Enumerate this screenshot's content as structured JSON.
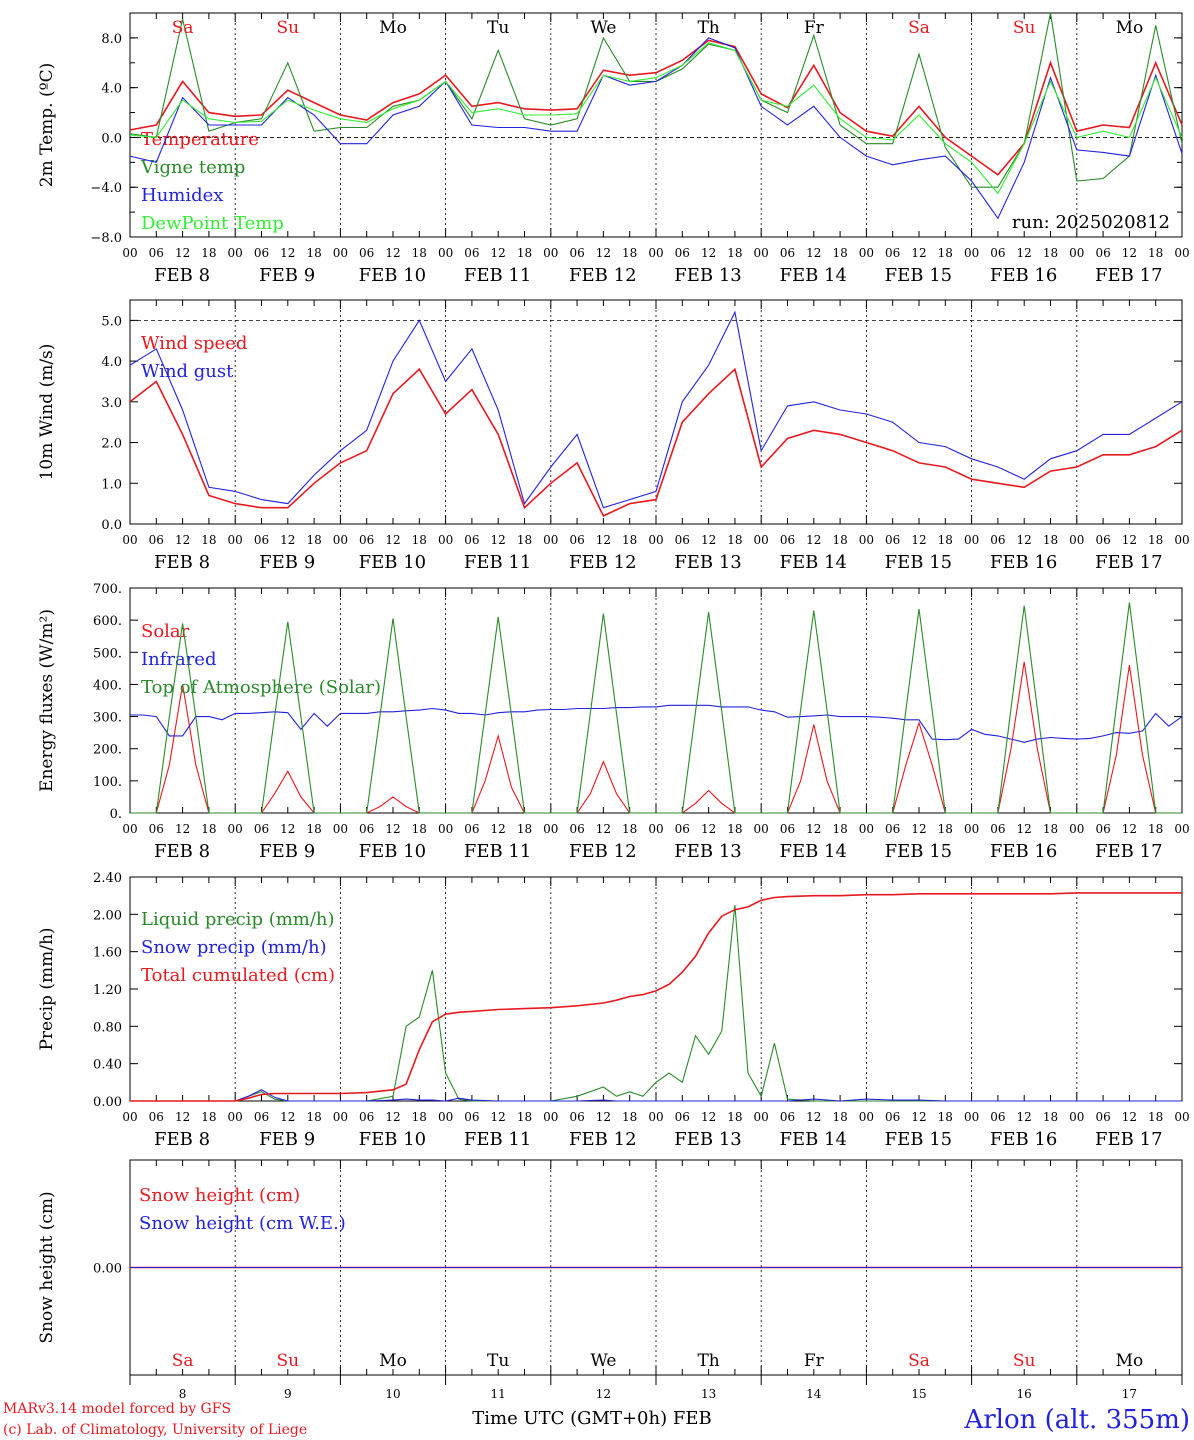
{
  "footer": {
    "model_line": "MARv3.14 model forced by GFS",
    "copyright_line": "(c) Lab. of Climatology, University of Liege",
    "xaxis_title": "Time UTC (GMT+0h) FEB",
    "station": "Arlon (alt. 355m)"
  },
  "colors": {
    "red": "#e8191f",
    "green": "#2a8a2a",
    "blue": "#2222dd",
    "lightgreen": "#33ee33",
    "axis": "#000000"
  },
  "days": [
    {
      "abbr": "Sa",
      "date": "FEB  8",
      "num": "8",
      "weekend": true
    },
    {
      "abbr": "Su",
      "date": "FEB  9",
      "num": "9",
      "weekend": true
    },
    {
      "abbr": "Mo",
      "date": "FEB 10",
      "num": "10",
      "weekend": false
    },
    {
      "abbr": "Tu",
      "date": "FEB 11",
      "num": "11",
      "weekend": false
    },
    {
      "abbr": "We",
      "date": "FEB 12",
      "num": "12",
      "weekend": false
    },
    {
      "abbr": "Th",
      "date": "FEB 13",
      "num": "13",
      "weekend": false
    },
    {
      "abbr": "Fr",
      "date": "FEB 14",
      "num": "14",
      "weekend": false
    },
    {
      "abbr": "Sa",
      "date": "FEB 15",
      "num": "15",
      "weekend": true
    },
    {
      "abbr": "Su",
      "date": "FEB 16",
      "num": "16",
      "weekend": true
    },
    {
      "abbr": "Mo",
      "date": "FEB 17",
      "num": "17",
      "weekend": false
    }
  ],
  "hour_labels": [
    "00",
    "06",
    "12",
    "18"
  ],
  "chart_data": [
    {
      "type": "line",
      "id": "temp",
      "ylabel": "2m Temp. (ºC)",
      "ylim": [
        -8,
        10
      ],
      "yticks": [
        -8,
        -4,
        0,
        4,
        8
      ],
      "ytick_labels": [
        "−8.0",
        "−4.0",
        "0.0",
        "4.0",
        "8.0"
      ],
      "refline": 0,
      "annotation": "run: 2025020812",
      "x_hours_from_feb8_00": [
        0,
        6,
        12,
        18,
        24,
        30,
        36,
        42,
        48,
        54,
        60,
        66,
        72,
        78,
        84,
        90,
        96,
        102,
        108,
        114,
        120,
        126,
        132,
        138,
        144,
        150,
        156,
        162,
        168,
        174,
        180,
        186,
        192,
        198,
        204,
        210,
        216,
        222,
        228,
        234,
        240
      ],
      "series": [
        {
          "name": "Temperature",
          "color": "red",
          "values": [
            0.6,
            1.0,
            4.5,
            2.0,
            1.7,
            1.8,
            3.8,
            2.8,
            1.8,
            1.4,
            2.8,
            3.5,
            5.0,
            2.5,
            2.8,
            2.3,
            2.2,
            2.3,
            5.4,
            5.0,
            5.2,
            6.2,
            7.8,
            7.3,
            3.5,
            2.4,
            5.8,
            2.0,
            0.5,
            0.1,
            2.5,
            0.0,
            -1.5,
            -3.0,
            -0.5,
            6.0,
            0.5,
            1.0,
            0.8,
            6.0,
            1.0
          ]
        },
        {
          "name": "Vigne temp",
          "color": "green",
          "values": [
            0.3,
            0.0,
            9.5,
            0.5,
            1.2,
            1.5,
            6.0,
            0.5,
            0.8,
            0.8,
            2.5,
            3.0,
            4.5,
            1.5,
            7.0,
            1.5,
            1.0,
            1.5,
            8.0,
            4.5,
            4.5,
            5.5,
            7.5,
            7.0,
            3.0,
            2.0,
            8.2,
            1.0,
            -0.5,
            -0.5,
            6.7,
            -0.8,
            -4.0,
            -4.0,
            -0.5,
            10.0,
            -3.5,
            -3.3,
            -1.5,
            9.0,
            -0.5
          ]
        },
        {
          "name": "Humidex",
          "color": "blue",
          "values": [
            -1.5,
            -2.0,
            3.2,
            1.0,
            1.0,
            1.0,
            3.2,
            1.8,
            -0.5,
            -0.5,
            1.8,
            2.5,
            4.5,
            1.0,
            0.8,
            0.8,
            0.5,
            0.5,
            5.0,
            4.2,
            4.5,
            5.8,
            8.0,
            7.2,
            2.5,
            1.0,
            2.5,
            0.0,
            -1.5,
            -2.2,
            -1.8,
            -1.5,
            -3.5,
            -6.5,
            -2.0,
            4.8,
            -1.0,
            -1.2,
            -1.5,
            5.0,
            -1.3
          ]
        },
        {
          "name": "DewPoint Temp",
          "color": "lightgreen",
          "values": [
            0.2,
            0.0,
            3.0,
            1.5,
            1.2,
            1.3,
            3.0,
            2.2,
            1.5,
            1.2,
            2.3,
            3.0,
            4.5,
            2.0,
            2.3,
            1.8,
            1.8,
            1.9,
            5.0,
            4.5,
            4.8,
            5.8,
            7.6,
            7.0,
            3.0,
            2.5,
            4.2,
            1.5,
            0.0,
            -0.2,
            1.8,
            -0.5,
            -2.0,
            -4.5,
            -0.5,
            4.5,
            0.0,
            0.5,
            0.0,
            4.8,
            0.0
          ]
        }
      ]
    },
    {
      "type": "line",
      "id": "wind",
      "ylabel": "10m Wind (m/s)",
      "ylim": [
        0,
        5.5
      ],
      "yticks": [
        0,
        1,
        2,
        3,
        4,
        5
      ],
      "ytick_labels": [
        "0.0",
        "1.0",
        "2.0",
        "3.0",
        "4.0",
        "5.0"
      ],
      "refline": 5,
      "x_hours_from_feb8_00": [
        0,
        6,
        12,
        18,
        24,
        30,
        36,
        42,
        48,
        54,
        60,
        66,
        72,
        78,
        84,
        90,
        96,
        102,
        108,
        114,
        120,
        126,
        132,
        138,
        144,
        150,
        156,
        162,
        168,
        174,
        180,
        186,
        192,
        198,
        204,
        210,
        216,
        222,
        228,
        234,
        240
      ],
      "series": [
        {
          "name": "Wind speed",
          "color": "red",
          "values": [
            3.0,
            3.5,
            2.2,
            0.7,
            0.5,
            0.4,
            0.4,
            1.0,
            1.5,
            1.8,
            3.2,
            3.8,
            2.7,
            3.3,
            2.2,
            0.4,
            1.0,
            1.5,
            0.2,
            0.5,
            0.6,
            2.5,
            3.2,
            3.8,
            1.4,
            2.1,
            2.3,
            2.2,
            2.0,
            1.8,
            1.5,
            1.4,
            1.1,
            1.0,
            0.9,
            1.3,
            1.4,
            1.7,
            1.7,
            1.9,
            2.3
          ]
        },
        {
          "name": "Wind gust",
          "color": "blue",
          "values": [
            3.9,
            4.3,
            2.8,
            0.9,
            0.8,
            0.6,
            0.5,
            1.2,
            1.8,
            2.3,
            4.0,
            5.0,
            3.5,
            4.3,
            2.8,
            0.5,
            1.4,
            2.2,
            0.4,
            0.6,
            0.8,
            3.0,
            3.9,
            5.2,
            1.8,
            2.9,
            3.0,
            2.8,
            2.7,
            2.5,
            2.0,
            1.9,
            1.6,
            1.4,
            1.1,
            1.6,
            1.8,
            2.2,
            2.2,
            2.6,
            3.0
          ]
        }
      ]
    },
    {
      "type": "line",
      "id": "energy",
      "ylabel": "Energy fluxes (W/m²)",
      "ylim": [
        0,
        700
      ],
      "yticks": [
        0,
        100,
        200,
        300,
        400,
        500,
        600,
        700
      ],
      "ytick_labels": [
        "0.",
        "100.",
        "200.",
        "300.",
        "400.",
        "500.",
        "600.",
        "700."
      ],
      "x_hours_from_feb8_00": [
        0,
        3,
        6,
        9,
        12,
        15,
        18,
        21,
        24,
        27,
        30,
        33,
        36,
        39,
        42,
        45,
        48,
        51,
        54,
        57,
        60,
        63,
        66,
        69,
        72,
        75,
        78,
        81,
        84,
        87,
        90,
        93,
        96,
        99,
        102,
        105,
        108,
        111,
        114,
        117,
        120,
        123,
        126,
        129,
        132,
        135,
        138,
        141,
        144,
        147,
        150,
        153,
        156,
        159,
        162,
        165,
        168,
        171,
        174,
        177,
        180,
        183,
        186,
        189,
        192,
        195,
        198,
        201,
        204,
        207,
        210,
        213,
        216,
        219,
        222,
        225,
        228,
        231,
        234,
        237,
        240
      ],
      "series": [
        {
          "name": "Solar",
          "color": "red",
          "values": [
            0,
            0,
            0,
            150,
            400,
            150,
            0,
            0,
            0,
            0,
            0,
            60,
            130,
            50,
            0,
            0,
            0,
            0,
            0,
            20,
            50,
            20,
            0,
            0,
            0,
            0,
            0,
            100,
            240,
            80,
            0,
            0,
            0,
            0,
            0,
            60,
            160,
            60,
            0,
            0,
            0,
            0,
            0,
            30,
            70,
            30,
            0,
            0,
            0,
            0,
            0,
            100,
            275,
            100,
            0,
            0,
            0,
            0,
            0,
            150,
            280,
            150,
            0,
            0,
            0,
            0,
            0,
            200,
            470,
            200,
            0,
            0,
            0,
            0,
            0,
            180,
            460,
            180,
            0,
            0,
            0
          ]
        },
        {
          "name": "Infrared",
          "color": "blue",
          "values": [
            305,
            305,
            300,
            240,
            240,
            300,
            300,
            290,
            310,
            310,
            312,
            315,
            312,
            260,
            310,
            270,
            310,
            310,
            310,
            315,
            315,
            318,
            320,
            325,
            320,
            310,
            310,
            305,
            312,
            315,
            315,
            320,
            322,
            322,
            325,
            325,
            325,
            328,
            328,
            330,
            330,
            335,
            335,
            335,
            335,
            330,
            330,
            330,
            320,
            315,
            298,
            300,
            302,
            305,
            300,
            300,
            300,
            298,
            295,
            290,
            290,
            230,
            228,
            230,
            260,
            245,
            240,
            230,
            220,
            230,
            235,
            232,
            230,
            232,
            240,
            250,
            248,
            255,
            310,
            270,
            300
          ]
        },
        {
          "name": "Top of Atmosphere (Solar)",
          "color": "green",
          "values": [
            0,
            0,
            0,
            300,
            590,
            300,
            0,
            0,
            0,
            0,
            0,
            300,
            595,
            300,
            0,
            0,
            0,
            0,
            0,
            300,
            605,
            300,
            0,
            0,
            0,
            0,
            0,
            305,
            610,
            305,
            0,
            0,
            0,
            0,
            0,
            310,
            620,
            310,
            0,
            0,
            0,
            0,
            0,
            315,
            625,
            315,
            0,
            0,
            0,
            0,
            0,
            320,
            630,
            320,
            0,
            0,
            0,
            0,
            0,
            320,
            635,
            320,
            0,
            0,
            0,
            0,
            0,
            325,
            645,
            325,
            0,
            0,
            0,
            0,
            0,
            330,
            655,
            330,
            0,
            0,
            0
          ]
        }
      ]
    },
    {
      "type": "line",
      "id": "precip",
      "ylabel": "Precip (mm/h)",
      "ylim": [
        0,
        2.4
      ],
      "yticks": [
        0,
        0.4,
        0.8,
        1.2,
        1.6,
        2.0,
        2.4
      ],
      "ytick_labels": [
        "0.00",
        "0.40",
        "0.80",
        "1.20",
        "1.60",
        "2.00",
        "2.40"
      ],
      "x_hours_from_feb8_00": [
        0,
        6,
        12,
        18,
        24,
        27,
        30,
        33,
        36,
        42,
        48,
        54,
        60,
        63,
        66,
        69,
        72,
        75,
        78,
        84,
        90,
        96,
        102,
        108,
        111,
        114,
        117,
        120,
        123,
        126,
        129,
        132,
        135,
        138,
        141,
        144,
        147,
        150,
        156,
        162,
        168,
        174,
        180,
        186,
        192,
        198,
        204,
        210,
        216,
        222,
        228,
        234,
        240
      ],
      "series": [
        {
          "name": "Liquid precip (mm/h)",
          "color": "green",
          "values": [
            0,
            0,
            0,
            0,
            0,
            0.05,
            0.1,
            0.02,
            0,
            0,
            0,
            0,
            0.05,
            0.8,
            0.9,
            1.4,
            0.3,
            0.02,
            0,
            0,
            0,
            0,
            0.05,
            0.15,
            0.05,
            0.1,
            0.05,
            0.2,
            0.3,
            0.2,
            0.7,
            0.5,
            0.75,
            2.1,
            0.3,
            0.05,
            0.62,
            0.02,
            0,
            0,
            0,
            0,
            0,
            0,
            0,
            0,
            0,
            0,
            0,
            0,
            0,
            0,
            0
          ]
        },
        {
          "name": "Snow precip (mm/h)",
          "color": "blue",
          "values": [
            0,
            0,
            0,
            0,
            0,
            0.05,
            0.12,
            0.04,
            0,
            0,
            0,
            0,
            0.01,
            0.02,
            0.01,
            0.01,
            0,
            0.03,
            0.01,
            0,
            0,
            0,
            0,
            0.01,
            0,
            0,
            0,
            0,
            0,
            0,
            0,
            0,
            0,
            0,
            0,
            0,
            0,
            0,
            0.02,
            0,
            0.02,
            0.01,
            0.01,
            0,
            0,
            0,
            0,
            0,
            0,
            0,
            0,
            0,
            0
          ]
        },
        {
          "name": "Total cumulated (cm)",
          "color": "red",
          "values": [
            0,
            0,
            0,
            0,
            0,
            0.03,
            0.07,
            0.08,
            0.08,
            0.08,
            0.08,
            0.09,
            0.12,
            0.18,
            0.55,
            0.85,
            0.93,
            0.95,
            0.96,
            0.98,
            0.99,
            1.0,
            1.02,
            1.05,
            1.08,
            1.12,
            1.14,
            1.18,
            1.25,
            1.38,
            1.55,
            1.8,
            1.98,
            2.05,
            2.08,
            2.15,
            2.18,
            2.19,
            2.2,
            2.2,
            2.21,
            2.21,
            2.22,
            2.22,
            2.22,
            2.22,
            2.22,
            2.22,
            2.23,
            2.23,
            2.23,
            2.23,
            2.23
          ]
        }
      ]
    },
    {
      "type": "line",
      "id": "snow",
      "ylabel": "Snow height (cm)",
      "ylim": [
        -1,
        1
      ],
      "yticks": [
        0
      ],
      "ytick_labels": [
        "0.00"
      ],
      "x_hours_from_feb8_00": [
        0,
        240
      ],
      "series": [
        {
          "name": "Snow height (cm)",
          "color": "red",
          "values": [
            0,
            0
          ]
        },
        {
          "name": "Snow height (cm W.E.)",
          "color": "blue",
          "values": [
            0,
            0
          ]
        }
      ]
    }
  ]
}
